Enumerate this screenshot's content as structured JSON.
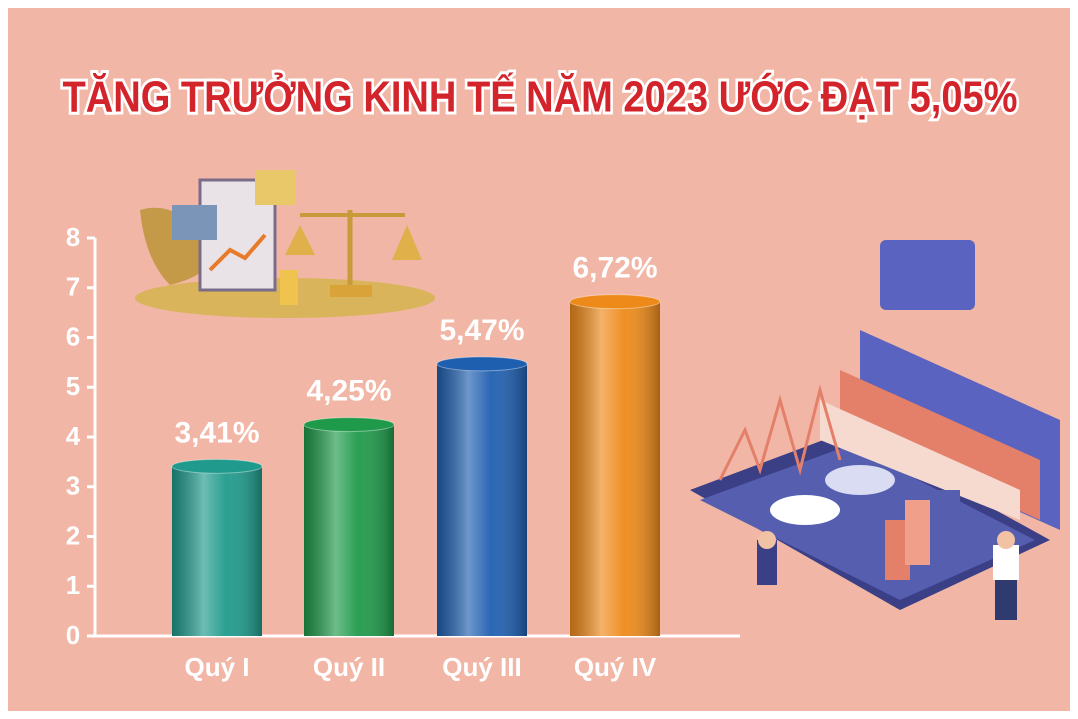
{
  "chart_data": {
    "type": "bar",
    "title": "TĂNG TRƯỞNG KINH TẾ NĂM 2023 ƯỚC ĐẠT 5,05%",
    "categories": [
      "Quý I",
      "Quý II",
      "Quý III",
      "Quý IV"
    ],
    "values": [
      3.41,
      4.25,
      5.47,
      6.72
    ],
    "value_labels": [
      "3,41%",
      "4,25%",
      "5,47%",
      "6,72%"
    ],
    "colors": [
      "#1f9a8c",
      "#1f9a4a",
      "#1f5fb0",
      "#ee8a1a"
    ],
    "ylim": [
      0,
      8
    ],
    "yticks": [
      0,
      1,
      2,
      3,
      4,
      5,
      6,
      7,
      8
    ]
  }
}
